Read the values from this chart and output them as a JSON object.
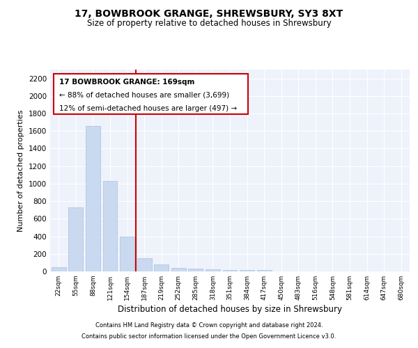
{
  "title": "17, BOWBROOK GRANGE, SHREWSBURY, SY3 8XT",
  "subtitle": "Size of property relative to detached houses in Shrewsbury",
  "xlabel": "Distribution of detached houses by size in Shrewsbury",
  "ylabel": "Number of detached properties",
  "footnote1": "Contains HM Land Registry data © Crown copyright and database right 2024.",
  "footnote2": "Contains public sector information licensed under the Open Government Licence v3.0.",
  "annotation_line1": "17 BOWBROOK GRANGE: 169sqm",
  "annotation_line2": "← 88% of detached houses are smaller (3,699)",
  "annotation_line3": "12% of semi-detached houses are larger (497) →",
  "bar_color": "#c9d9f0",
  "bar_edge_color": "#a8c0e0",
  "vline_color": "#cc0000",
  "vline_x": 4.5,
  "background_color": "#eef2fb",
  "categories": [
    "22sqm",
    "55sqm",
    "88sqm",
    "121sqm",
    "154sqm",
    "187sqm",
    "219sqm",
    "252sqm",
    "285sqm",
    "318sqm",
    "351sqm",
    "384sqm",
    "417sqm",
    "450sqm",
    "483sqm",
    "516sqm",
    "548sqm",
    "581sqm",
    "614sqm",
    "647sqm",
    "680sqm"
  ],
  "values": [
    50,
    730,
    1660,
    1030,
    400,
    150,
    82,
    42,
    32,
    22,
    17,
    15,
    12,
    0,
    0,
    0,
    0,
    0,
    0,
    0,
    0
  ],
  "ylim": [
    0,
    2300
  ],
  "yticks": [
    0,
    200,
    400,
    600,
    800,
    1000,
    1200,
    1400,
    1600,
    1800,
    2000,
    2200
  ]
}
